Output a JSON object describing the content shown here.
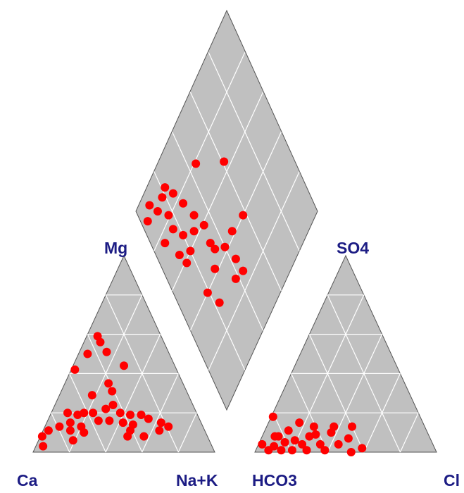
{
  "chart_data": {
    "type": "piper",
    "color": "#ff0000",
    "ticks": [
      20,
      40,
      60,
      80
    ],
    "cation": {
      "left": "Ca",
      "right": "Na+K",
      "top": "Mg",
      "top_values": [
        59,
        56,
        50,
        51,
        42,
        44,
        29,
        35,
        31,
        20,
        19,
        20,
        20,
        22,
        24,
        20,
        19,
        19,
        17,
        15,
        13,
        16,
        16,
        15,
        14,
        15,
        13,
        8,
        3,
        13,
        11,
        10,
        11,
        8,
        11,
        6,
        8,
        11
      ],
      "right_values": [
        6,
        9,
        5,
        15,
        2,
        28,
        18,
        24,
        28,
        9,
        15,
        18,
        23,
        29,
        32,
        38,
        44,
        50,
        55,
        13,
        20,
        28,
        34,
        42,
        48,
        63,
        68,
        1,
        4,
        8,
        15,
        23,
        48,
        57,
        64,
        19,
        48,
        3
      ]
    },
    "anion": {
      "left": "HCO3",
      "right": "Cl",
      "top": "SO4",
      "top_values": [
        18,
        8,
        4,
        1,
        3,
        5,
        1,
        6,
        4,
        8,
        13,
        4,
        1,
        10,
        13,
        4,
        7,
        13,
        2,
        0,
        11,
        1,
        9,
        1,
        15,
        8
      ],
      "right_values": [
        1,
        9,
        2,
        7,
        9,
        14,
        20,
        19,
        24,
        26,
        26,
        34,
        38,
        37,
        37,
        44,
        48,
        47,
        58,
        53,
        13,
        28,
        29,
        14,
        17,
        7
      ]
    },
    "diamond": {
      "left_values": [
        79,
        64,
        90,
        84,
        94,
        88,
        91,
        81,
        76,
        67,
        75,
        68,
        76,
        63,
        59,
        51,
        60,
        65,
        59,
        47,
        42,
        42,
        40,
        33,
        26,
        40,
        31,
        42,
        28,
        89
      ],
      "right_values": [
        45,
        61,
        22,
        25,
        9,
        12,
        4,
        17,
        28,
        31,
        16,
        20,
        8,
        27,
        34,
        33,
        20,
        13,
        15,
        34,
        40,
        48,
        58,
        43,
        44,
        19,
        23,
        29,
        38,
        18
      ]
    }
  }
}
